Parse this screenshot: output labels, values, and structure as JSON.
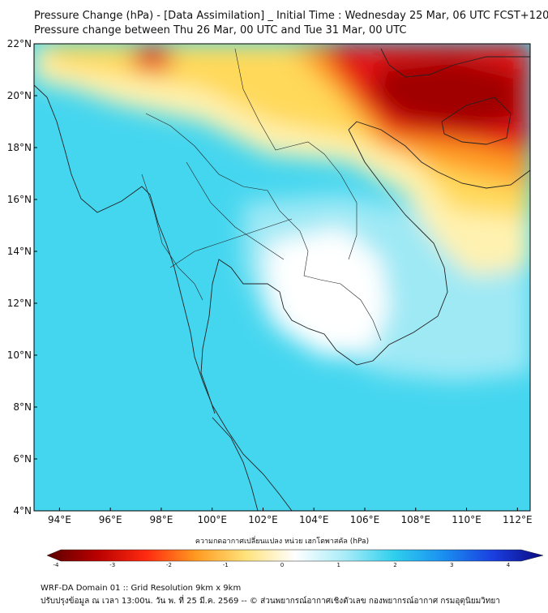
{
  "header": {
    "title_line1": "Pressure Change (hPa) - [Data Assimilation] _ Initial Time : Wednesday 25 Mar, 06 UTC FCST+120",
    "title_line2": "Pressure change between Thu 26 Mar, 00 UTC and Tue 31 Mar, 00 UTC"
  },
  "map": {
    "lat_labels": [
      "22°N",
      "20°N",
      "18°N",
      "16°N",
      "14°N",
      "12°N",
      "10°N",
      "8°N",
      "6°N",
      "4°N"
    ],
    "lon_labels": [
      "94°E",
      "96°E",
      "98°E",
      "100°E",
      "102°E",
      "104°E",
      "106°E",
      "108°E",
      "110°E",
      "112°E"
    ],
    "lat_range": [
      4,
      22
    ],
    "lon_range": [
      93,
      112.5
    ],
    "fill_colors": {
      "ocean_base": "#45d6ef",
      "light_cyan": "#9fe9f5",
      "white": "#ffffff",
      "light_yellow": "#fff2b0",
      "yellow": "#ffd95a",
      "orange": "#ff9a22",
      "red": "#e41818",
      "dark_red": "#a00000",
      "coastline": "#222222"
    }
  },
  "colorbar": {
    "title": "ความกดอากาศเปลี่ยนแปลง หน่วย เฮกโตพาสคัล (hPa)",
    "ticks": [
      "-4",
      "-3",
      "-2",
      "-1",
      "0",
      "1",
      "2",
      "3",
      "4"
    ],
    "range": [
      -4,
      4
    ]
  },
  "footer": {
    "line1": "WRF-DA Domain 01 :: Grid Resolution 9km x 9km",
    "line2": "ปรับปรุงข้อมูล ณ เวลา 13:00น. วัน พ. ที่ 25 มี.ค. 2569 -- © ส่วนพยากรณ์อากาศเชิงตัวเลข กองพยากรณ์อากาศ กรมอุตุนิยมวิทยา"
  }
}
